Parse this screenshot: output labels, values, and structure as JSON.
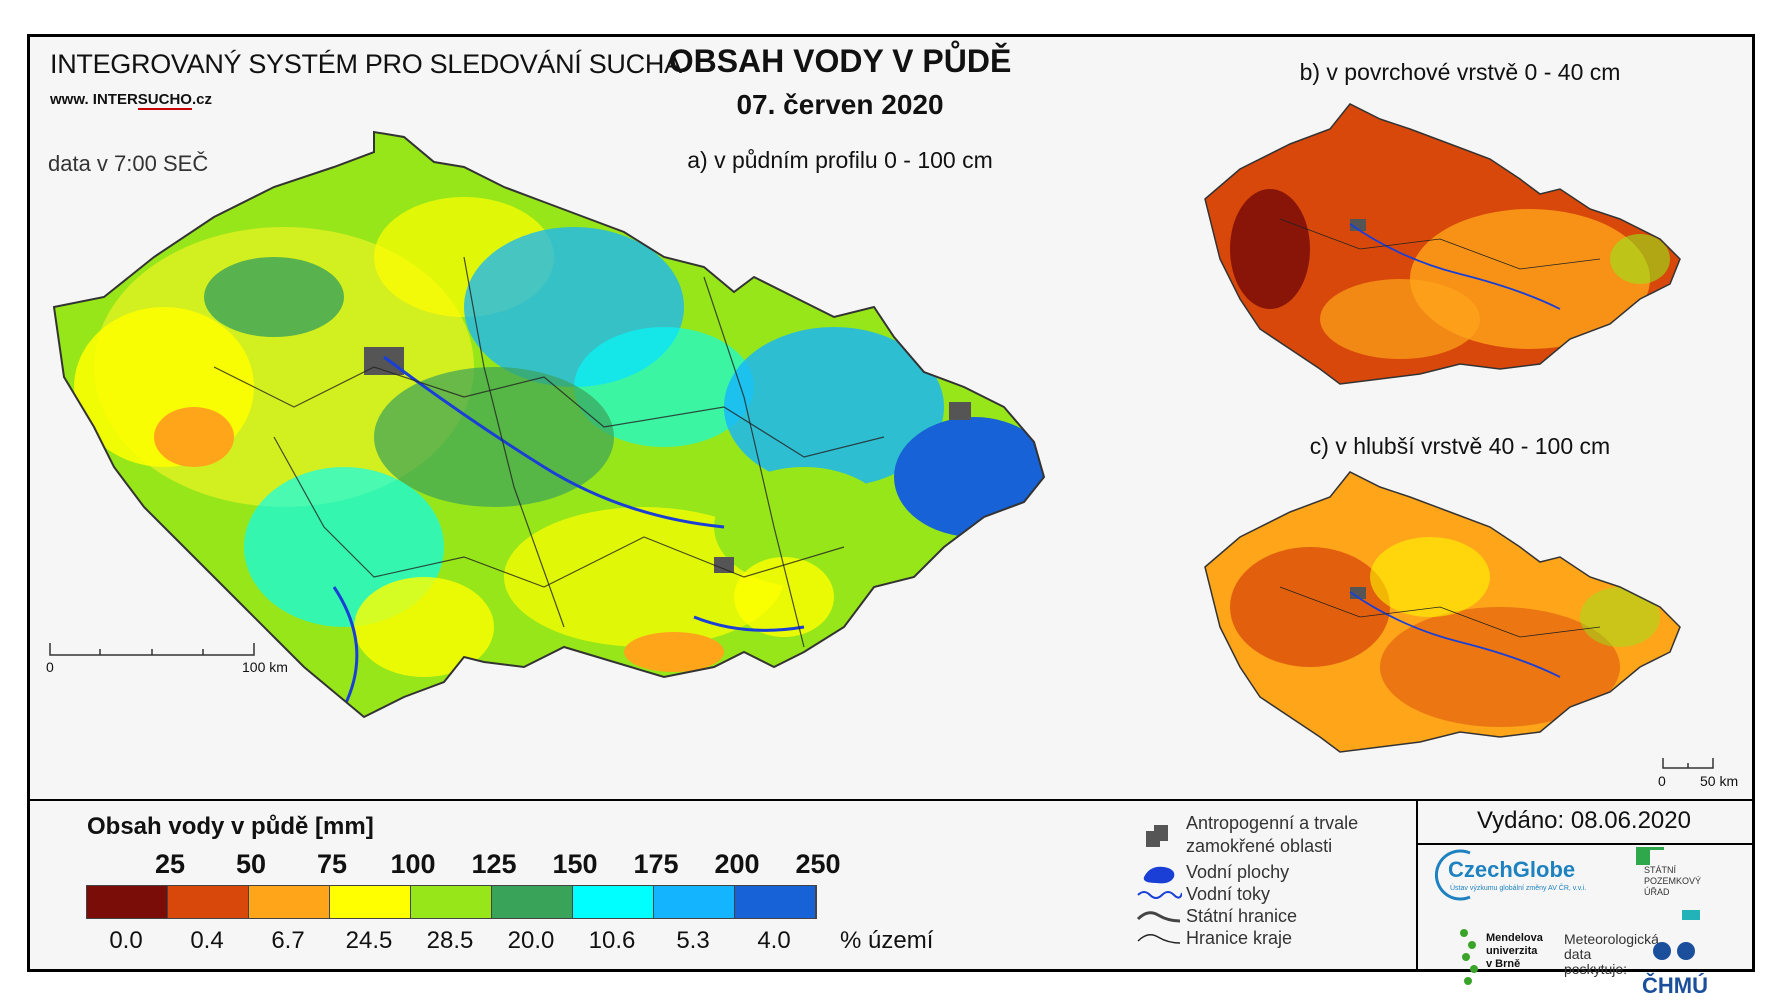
{
  "header": {
    "system_title": "INTEGROVANÝ SYSTÉM PRO SLEDOVÁNÍ SUCHA",
    "website_prefix": "www. INTER",
    "website_highlight": "SUCHO",
    "website_suffix": ".cz",
    "data_time": "data v 7:00 SEČ",
    "main_title": "OBSAH VODY V PŮDĚ",
    "date": "07. červen 2020"
  },
  "maps": {
    "a_label": "a) v půdním profilu 0 - 100 cm",
    "b_label": "b) v povrchové vrstvě 0 - 40 cm",
    "c_label": "c) v hlubší vrstvě 40 - 100 cm",
    "scale_main": {
      "zero": "0",
      "end": "100 km"
    },
    "scale_small": {
      "zero": "0",
      "end": "50 km"
    }
  },
  "legend": {
    "title": "Obsah vody v půdě  [mm]",
    "thresholds": [
      "25",
      "50",
      "75",
      "100",
      "125",
      "150",
      "175",
      "200",
      "250"
    ],
    "colors": [
      "#7a0d08",
      "#d8480a",
      "#ffa51a",
      "#ffff00",
      "#97e619",
      "#3aa35a",
      "#00ffff",
      "#14b4ff",
      "#1762d6"
    ],
    "percentages": [
      "0.0",
      "0.4",
      "6.7",
      "24.5",
      "28.5",
      "20.0",
      "10.6",
      "5.3",
      "4.0"
    ],
    "percent_unit": "% území"
  },
  "symbols": {
    "anthropogenic_line1": "Antropogenní a trvale",
    "anthropogenic_line2": "zamokřené oblasti",
    "water_areas": "Vodní plochy",
    "water_streams": "Vodní toky",
    "state_border": "Státní hranice",
    "region_border": "Hranice kraje"
  },
  "footer": {
    "issued": "Vydáno: 08.06.2020",
    "czechglobe": "CzechGlobe",
    "czechglobe_sub": "Ústav výzkumu globální změny AV ČR, v.v.i.",
    "spu_line1": "STÁTNÍ",
    "spu_line2": "POZEMKOVÝ",
    "spu_line3": "ÚŘAD",
    "mendel_line1": "Mendelova",
    "mendel_line2": "univerzita",
    "mendel_line3": "v Brně",
    "meteo_line1": "Meteorologická",
    "meteo_line2": "data",
    "meteo_line3": "poskytuje:",
    "chmu": "ČHMÚ"
  }
}
